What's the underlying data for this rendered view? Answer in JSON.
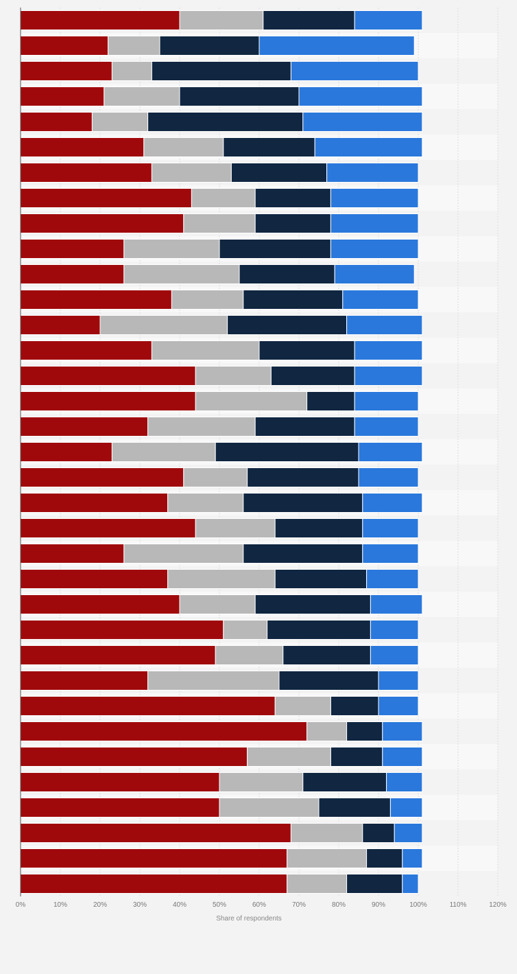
{
  "chart_data": {
    "type": "bar",
    "orientation": "horizontal",
    "stacked": true,
    "xlabel": "Share of respondents",
    "xlim": [
      0,
      120
    ],
    "x_ticks": [
      "0%",
      "10%",
      "20%",
      "30%",
      "40%",
      "50%",
      "60%",
      "70%",
      "80%",
      "90%",
      "100%",
      "110%",
      "120%"
    ],
    "grid": true,
    "legend": "none",
    "colors": [
      "#a0090c",
      "#b8b8b8",
      "#102641",
      "#2a78dc"
    ],
    "series": [
      {
        "values": [
          40,
          22,
          23,
          21,
          18,
          31,
          33,
          43,
          41,
          26,
          26,
          38,
          20,
          33,
          44,
          44,
          32,
          23,
          41,
          37,
          44,
          26,
          37,
          40,
          51,
          49,
          32,
          64,
          72,
          57,
          50,
          50,
          68,
          67,
          67
        ]
      },
      {
        "values": [
          21,
          13,
          10,
          19,
          14,
          20,
          20,
          16,
          18,
          24,
          29,
          18,
          32,
          27,
          19,
          28,
          27,
          26,
          16,
          19,
          20,
          30,
          27,
          19,
          11,
          17,
          33,
          14,
          10,
          21,
          21,
          25,
          18,
          20,
          15
        ]
      },
      {
        "values": [
          23,
          25,
          35,
          30,
          39,
          23,
          24,
          19,
          19,
          28,
          24,
          25,
          30,
          24,
          21,
          12,
          25,
          36,
          28,
          30,
          22,
          30,
          23,
          29,
          26,
          22,
          25,
          12,
          9,
          13,
          21,
          18,
          8,
          9,
          14
        ]
      },
      {
        "values": [
          17,
          39,
          32,
          31,
          30,
          27,
          23,
          22,
          22,
          22,
          20,
          19,
          19,
          17,
          17,
          16,
          16,
          16,
          15,
          15,
          14,
          14,
          13,
          13,
          12,
          12,
          10,
          10,
          10,
          10,
          9,
          8,
          7,
          5,
          4
        ]
      }
    ]
  }
}
